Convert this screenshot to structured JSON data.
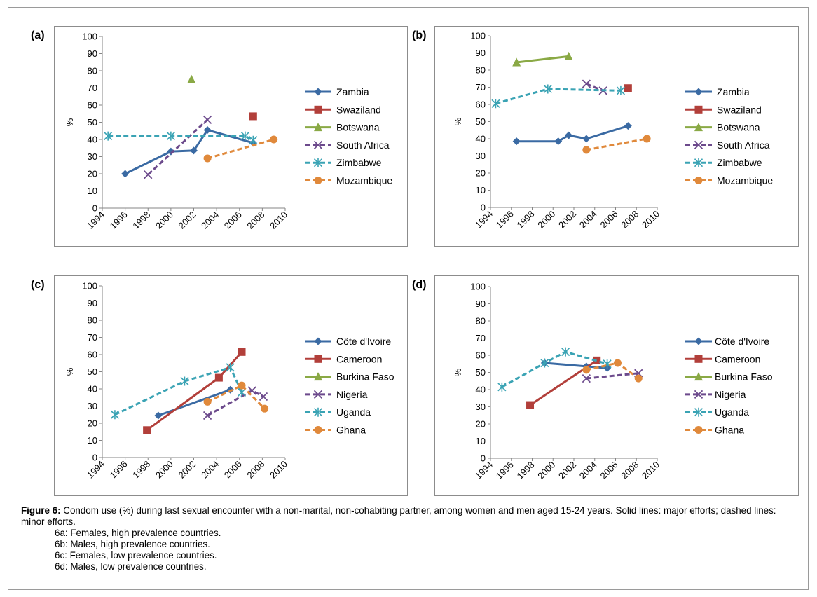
{
  "figure": {
    "caption_label": "Figure 6:",
    "caption_text": " Condom use (%) during last sexual encounter with a non-marital, non-cohabiting partner, among women and men aged 15-24 years. Solid lines: major efforts; dashed lines: minor efforts.",
    "subcaptions": [
      "6a: Females, high prevalence countries.",
      "6b: Males, high prevalence countries.",
      "6c: Females, low prevalence countries.",
      "6d: Males, low prevalence countries."
    ]
  },
  "colors": {
    "blue": "#3a6aa3",
    "red": "#b23f3a",
    "green": "#8aa945",
    "purple": "#6c4a8c",
    "teal": "#3aa3b4",
    "orange": "#e0893b"
  },
  "chart_data": [
    {
      "id": "a",
      "type": "line",
      "panel_label": "(a)",
      "ylabel": "%",
      "ylim": [
        0,
        100
      ],
      "yticks": [
        "0",
        "10",
        "20",
        "30",
        "40",
        "50",
        "60",
        "70",
        "80",
        "90",
        "100"
      ],
      "xlim": [
        1994,
        2010
      ],
      "xticks": [
        "1994",
        "1996",
        "1998",
        "2000",
        "2002",
        "2004",
        "2006",
        "2008",
        "2010"
      ],
      "series": [
        {
          "name": "Zambia",
          "color": "blue",
          "marker": "diamond",
          "dash": false,
          "points": [
            [
              1996.0,
              20
            ],
            [
              2000.0,
              33
            ],
            [
              2002.0,
              33.5
            ],
            [
              2003.2,
              45.5
            ],
            [
              2007.2,
              38
            ]
          ]
        },
        {
          "name": "Swaziland",
          "color": "red",
          "marker": "square",
          "dash": false,
          "points": [
            [
              2007.2,
              53.5
            ]
          ]
        },
        {
          "name": "Botswana",
          "color": "green",
          "marker": "triangle",
          "dash": false,
          "points": [
            [
              2001.8,
              75
            ]
          ]
        },
        {
          "name": "South Africa",
          "color": "purple",
          "marker": "x",
          "dash": true,
          "points": [
            [
              1998.0,
              19.5
            ],
            [
              2003.2,
              51.5
            ]
          ]
        },
        {
          "name": "Zimbabwe",
          "color": "teal",
          "marker": "star",
          "dash": true,
          "points": [
            [
              1994.5,
              42
            ],
            [
              2000.0,
              42
            ],
            [
              2006.5,
              42
            ],
            [
              2007.2,
              39.5
            ]
          ]
        },
        {
          "name": "Mozambique",
          "color": "orange",
          "marker": "circle",
          "dash": true,
          "points": [
            [
              2003.2,
              29
            ],
            [
              2009.0,
              40
            ]
          ]
        }
      ]
    },
    {
      "id": "b",
      "type": "line",
      "panel_label": "(b)",
      "ylabel": "%",
      "ylim": [
        0,
        100
      ],
      "yticks": [
        "0",
        "10",
        "20",
        "30",
        "40",
        "50",
        "60",
        "70",
        "80",
        "90",
        "100"
      ],
      "xlim": [
        1994,
        2010
      ],
      "xticks": [
        "1994",
        "1996",
        "1998",
        "2000",
        "2002",
        "2004",
        "2006",
        "2008",
        "2010"
      ],
      "series": [
        {
          "name": "Zambia",
          "color": "blue",
          "marker": "diamond",
          "dash": false,
          "points": [
            [
              1996.5,
              38.5
            ],
            [
              2000.5,
              38.5
            ],
            [
              2001.5,
              42
            ],
            [
              2003.2,
              40
            ],
            [
              2007.2,
              47.5
            ]
          ]
        },
        {
          "name": "Swaziland",
          "color": "red",
          "marker": "square",
          "dash": false,
          "points": [
            [
              2007.2,
              69.5
            ]
          ]
        },
        {
          "name": "Botswana",
          "color": "green",
          "marker": "triangle",
          "dash": false,
          "points": [
            [
              1996.5,
              84.5
            ],
            [
              2001.5,
              88
            ]
          ]
        },
        {
          "name": "South Africa",
          "color": "purple",
          "marker": "x",
          "dash": true,
          "points": [
            [
              2003.2,
              72
            ],
            [
              2004.8,
              68
            ]
          ]
        },
        {
          "name": "Zimbabwe",
          "color": "teal",
          "marker": "star",
          "dash": true,
          "points": [
            [
              1994.5,
              60.5
            ],
            [
              1999.5,
              69
            ],
            [
              2006.5,
              68
            ]
          ]
        },
        {
          "name": "Mozambique",
          "color": "orange",
          "marker": "circle",
          "dash": true,
          "points": [
            [
              2003.2,
              33.5
            ],
            [
              2009.0,
              40
            ]
          ]
        }
      ]
    },
    {
      "id": "c",
      "type": "line",
      "panel_label": "(c)",
      "ylabel": "%",
      "ylim": [
        0,
        100
      ],
      "yticks": [
        "0",
        "10",
        "20",
        "30",
        "40",
        "50",
        "60",
        "70",
        "80",
        "90",
        "100"
      ],
      "xlim": [
        1994,
        2010
      ],
      "xticks": [
        "1994",
        "1996",
        "1998",
        "2000",
        "2002",
        "2004",
        "2006",
        "2008",
        "2010"
      ],
      "series": [
        {
          "name": "Côte d'Ivoire",
          "color": "blue",
          "marker": "diamond",
          "dash": false,
          "points": [
            [
              1998.9,
              24.5
            ],
            [
              2005.2,
              39.5
            ]
          ]
        },
        {
          "name": "Cameroon",
          "color": "red",
          "marker": "square",
          "dash": false,
          "points": [
            [
              1997.9,
              16
            ],
            [
              2004.2,
              46.5
            ],
            [
              2006.2,
              61.5
            ]
          ]
        },
        {
          "name": "Burkina Faso",
          "color": "green",
          "marker": "triangle",
          "dash": false,
          "points": []
        },
        {
          "name": "Nigeria",
          "color": "purple",
          "marker": "x",
          "dash": true,
          "points": [
            [
              2003.2,
              24.5
            ],
            [
              2007.1,
              39
            ],
            [
              2008.1,
              35.5
            ]
          ]
        },
        {
          "name": "Uganda",
          "color": "teal",
          "marker": "star",
          "dash": true,
          "points": [
            [
              1995.1,
              25
            ],
            [
              2001.2,
              44.5
            ],
            [
              2005.2,
              52.5
            ],
            [
              2006.2,
              38
            ]
          ]
        },
        {
          "name": "Ghana",
          "color": "orange",
          "marker": "circle",
          "dash": true,
          "points": [
            [
              2003.2,
              32.5
            ],
            [
              2006.2,
              42
            ],
            [
              2008.2,
              28.5
            ]
          ]
        }
      ]
    },
    {
      "id": "d",
      "type": "line",
      "panel_label": "(d)",
      "ylabel": "%",
      "ylim": [
        0,
        100
      ],
      "yticks": [
        "0",
        "10",
        "20",
        "30",
        "40",
        "50",
        "60",
        "70",
        "80",
        "90",
        "100"
      ],
      "xlim": [
        1994,
        2010
      ],
      "xticks": [
        "1994",
        "1996",
        "1998",
        "2000",
        "2002",
        "2004",
        "2006",
        "2008",
        "2010"
      ],
      "series": [
        {
          "name": "Côte d'Ivoire",
          "color": "blue",
          "marker": "diamond",
          "dash": false,
          "points": [
            [
              1999.2,
              55.5
            ],
            [
              2003.2,
              53.5
            ],
            [
              2005.2,
              52.5
            ]
          ]
        },
        {
          "name": "Cameroon",
          "color": "red",
          "marker": "square",
          "dash": false,
          "points": [
            [
              1997.8,
              31
            ],
            [
              2004.2,
              57
            ]
          ]
        },
        {
          "name": "Burkina Faso",
          "color": "green",
          "marker": "triangle",
          "dash": false,
          "points": []
        },
        {
          "name": "Nigeria",
          "color": "purple",
          "marker": "x",
          "dash": true,
          "points": [
            [
              2003.2,
              46.5
            ],
            [
              2008.2,
              49.5
            ]
          ]
        },
        {
          "name": "Uganda",
          "color": "teal",
          "marker": "star",
          "dash": true,
          "points": [
            [
              1995.1,
              41.5
            ],
            [
              1999.2,
              55.5
            ],
            [
              2001.2,
              62
            ],
            [
              2005.2,
              55
            ]
          ]
        },
        {
          "name": "Ghana",
          "color": "orange",
          "marker": "circle",
          "dash": true,
          "points": [
            [
              2003.2,
              51.5
            ],
            [
              2006.2,
              55.5
            ],
            [
              2008.2,
              46.5
            ]
          ]
        }
      ]
    }
  ]
}
